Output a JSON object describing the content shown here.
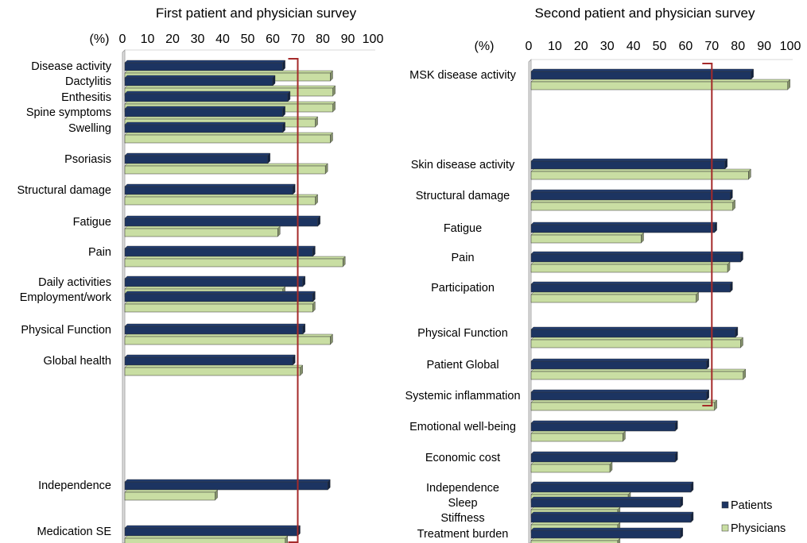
{
  "chart_data": [
    {
      "type": "bar",
      "orientation": "horizontal",
      "title": "First patient and physician survey",
      "axis_unit": "(%)",
      "xlim": [
        0,
        100
      ],
      "ticks": [
        "0",
        "10",
        "20",
        "30",
        "40",
        "50",
        "60",
        "70",
        "80",
        "90",
        "100"
      ],
      "threshold": 70,
      "categories": [
        "Disease activity",
        "Dactylitis",
        "Enthesitis",
        "Spine symptoms",
        "Swelling",
        "Psoriasis",
        "Structural damage",
        "Fatigue",
        "Pain",
        "Daily activities",
        "Employment/work",
        "Physical Function",
        "Global health",
        "Independence",
        "Medication SE"
      ],
      "series": [
        {
          "name": "Patients",
          "values": [
            64,
            60,
            66,
            64,
            64,
            58,
            68,
            78,
            76,
            72,
            76,
            72,
            68,
            82,
            70
          ]
        },
        {
          "name": "Physicians",
          "values": [
            83,
            84,
            84,
            77,
            83,
            81,
            77,
            62,
            88,
            64,
            76,
            83,
            71,
            37,
            65
          ]
        }
      ]
    },
    {
      "type": "bar",
      "orientation": "horizontal",
      "title": "Second patient and physician survey",
      "axis_unit": "(%)",
      "xlim": [
        0,
        100
      ],
      "ticks": [
        "0",
        "10",
        "20",
        "30",
        "40",
        "50",
        "60",
        "70",
        "80",
        "90",
        "100"
      ],
      "threshold": 70,
      "categories": [
        "MSK disease activity",
        "Skin disease activity",
        "Structural damage",
        "Fatigue",
        "Pain",
        "Participation",
        "Physical Function",
        "Patient Global",
        "Systemic inflammation",
        "Emotional well-being",
        "Economic cost",
        "Independence",
        "Sleep",
        "Stiffness",
        "Treatment burden"
      ],
      "series": [
        {
          "name": "Patients",
          "values": [
            85,
            75,
            77,
            71,
            81,
            77,
            79,
            68,
            68,
            56,
            56,
            62,
            58,
            62,
            58
          ]
        },
        {
          "name": "Physicians",
          "values": [
            99,
            84,
            78,
            43,
            76,
            64,
            81,
            82,
            71,
            36,
            31,
            38,
            34,
            34,
            34
          ]
        }
      ]
    }
  ],
  "legend": {
    "position": "bottom-right",
    "items": [
      {
        "label": "Patients",
        "color": "#1c3461"
      },
      {
        "label": "Physicians",
        "color": "#c9dea3"
      }
    ]
  },
  "colors": {
    "patients": "#1c3461",
    "physicians": "#c9dea3",
    "threshold": "#a52a2a",
    "axis": "#999999"
  }
}
